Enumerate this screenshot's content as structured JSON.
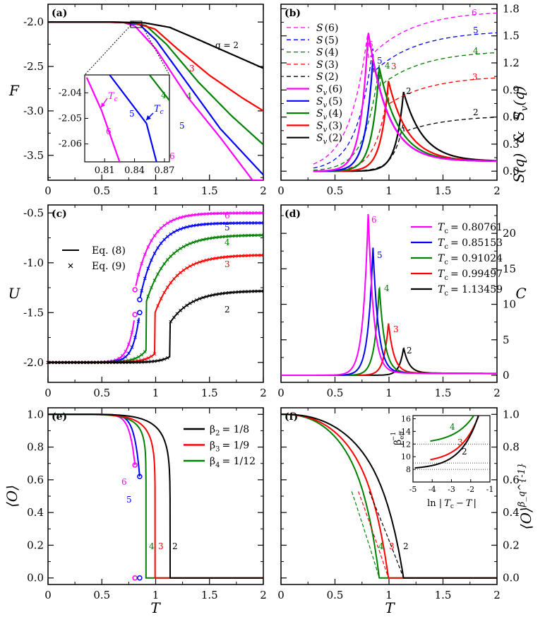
{
  "colors": {
    "q6": "#ff00ff",
    "q5": "#0000ff",
    "q4": "#008000",
    "q3": "#ff0000",
    "q2": "#000000"
  },
  "chart_data": [
    {
      "id": "a",
      "type": "line",
      "panel_label": "(a)",
      "xlabel": "",
      "ylabel": "F",
      "xlim": [
        0,
        2
      ],
      "ylim": [
        -3.78,
        -1.8
      ],
      "xticks": [
        "0",
        "0.5",
        "1",
        "1.5",
        "2"
      ],
      "yticks": [
        "-2.0",
        "-2.5",
        "-3.0",
        "-3.5"
      ],
      "series": [
        {
          "name": "q=6",
          "label": "6",
          "x": [
            0,
            0.5,
            0.7,
            0.807,
            1.0,
            1.3,
            1.6,
            1.9
          ],
          "y": [
            -2.0,
            -2.0,
            -2.005,
            -2.045,
            -2.3,
            -2.85,
            -3.3,
            -3.78
          ]
        },
        {
          "name": "q=5",
          "label": "5",
          "x": [
            0,
            0.5,
            0.7,
            0.852,
            1.0,
            1.3,
            1.6,
            2.0
          ],
          "y": [
            -2.0,
            -2.0,
            -2.004,
            -2.03,
            -2.2,
            -2.7,
            -3.2,
            -3.72
          ]
        },
        {
          "name": "q=4",
          "label": "4",
          "x": [
            0,
            0.5,
            0.75,
            0.91,
            1.1,
            1.4,
            1.7,
            2.0
          ],
          "y": [
            -2.0,
            -2.0,
            -2.005,
            -2.04,
            -2.25,
            -2.68,
            -3.05,
            -3.38
          ]
        },
        {
          "name": "q=3",
          "label": "3",
          "x": [
            0,
            0.5,
            0.8,
            0.995,
            1.2,
            1.5,
            1.8,
            2.0
          ],
          "y": [
            -2.0,
            -2.0,
            -2.008,
            -2.08,
            -2.3,
            -2.6,
            -2.85,
            -3.0
          ]
        },
        {
          "name": "q=2",
          "label": "q = 2",
          "x": [
            0,
            0.6,
            0.9,
            1.13,
            1.4,
            1.7,
            2.0
          ],
          "y": [
            -2.0,
            -2.0,
            -2.01,
            -2.06,
            -2.2,
            -2.36,
            -2.52
          ]
        }
      ],
      "inset": {
        "xlim": [
          0.79,
          0.875
        ],
        "ylim": [
          -2.067,
          -2.033
        ],
        "xticks": [
          "0.81",
          "0.84",
          "0.87"
        ],
        "yticks": [
          "-2.04",
          "-2.05",
          "-2.06"
        ],
        "annotations": [
          "T",
          "c",
          "T",
          "c"
        ],
        "labels": [
          "6",
          "5",
          "4"
        ]
      }
    },
    {
      "id": "b",
      "type": "line",
      "panel_label": "(b)",
      "xlabel": "",
      "ylabel_right_1": "S(q)",
      "ylabel_right_amp": "&",
      "ylabel_right_2": "S",
      "ylabel_right_2_sub": "v",
      "ylabel_right_2_tail": "(q)",
      "xlim": [
        0,
        2
      ],
      "ylim": [
        -0.1,
        1.85
      ],
      "xticks": [
        "0",
        "0.5",
        "1",
        "1.5",
        "2"
      ],
      "yticks": [
        "0.0",
        "0.3",
        "0.6",
        "0.9",
        "1.2",
        "1.5",
        "1.8"
      ],
      "legend": [
        "S(6)",
        "S(5)",
        "S(4)",
        "S(3)",
        "S(2)",
        "S_v(6)",
        "S_v(5)",
        "S_v(4)",
        "S_v(3)",
        "S_v(2)"
      ],
      "legend_parts": [
        {
          "s": "S",
          "sub": "",
          "q": "(6)"
        },
        {
          "s": "S",
          "sub": "",
          "q": "(5)"
        },
        {
          "s": "S",
          "sub": "",
          "q": "(4)"
        },
        {
          "s": "S",
          "sub": "",
          "q": "(3)"
        },
        {
          "s": "S",
          "sub": "",
          "q": "(2)"
        },
        {
          "s": "S",
          "sub": "v",
          "q": "(6)"
        },
        {
          "s": "S",
          "sub": "v",
          "q": "(5)"
        },
        {
          "s": "S",
          "sub": "v",
          "q": "(4)"
        },
        {
          "s": "S",
          "sub": "v",
          "q": "(3)"
        },
        {
          "s": "S",
          "sub": "v",
          "q": "(2)"
        }
      ],
      "Tc": [
        0.80761,
        0.85153,
        0.91024,
        0.99497,
        1.13459
      ],
      "S_final": [
        1.78,
        1.56,
        1.34,
        1.06,
        0.62
      ],
      "Sv_peak": [
        1.55,
        1.25,
        1.15,
        1.0,
        0.88
      ],
      "labels": [
        "6",
        "5",
        "4",
        "3",
        "2"
      ]
    },
    {
      "id": "c",
      "type": "line",
      "panel_label": "(c)",
      "xlabel": "",
      "ylabel": "U",
      "xlim": [
        0,
        2
      ],
      "ylim": [
        -2.2,
        -0.42
      ],
      "xticks": [
        "0",
        "0.5",
        "1",
        "1.5",
        "2"
      ],
      "yticks": [
        "-0.5",
        "-1.0",
        "-1.5",
        "-2.0"
      ],
      "legend": [
        "Eq. (8)",
        "Eq. (9)"
      ],
      "Tc": [
        0.80761,
        0.85153,
        0.91024,
        0.99497,
        1.13459
      ],
      "U_final": [
        -0.5,
        -0.6,
        -0.72,
        -0.92,
        -1.28
      ],
      "labels": [
        "6",
        "5",
        "4",
        "3",
        "2"
      ]
    },
    {
      "id": "d",
      "type": "line",
      "panel_label": "(d)",
      "xlabel": "",
      "ylabel": "C",
      "xlim": [
        0,
        2
      ],
      "ylim": [
        -1,
        24
      ],
      "xticks": [
        "0",
        "0.5",
        "1",
        "1.5",
        "2"
      ],
      "yticks": [
        "0",
        "5",
        "10",
        "15",
        "20"
      ],
      "legend": [
        "T_c = 0.80761",
        "T_c = 0.85153",
        "T_c = 0.91024",
        "T_c = 0.99497",
        "T_c = 1.13459"
      ],
      "legend_values": [
        "0.80761",
        "0.85153",
        "0.91024",
        "0.99497",
        "1.13459"
      ],
      "Tc": [
        0.80761,
        0.85153,
        0.91024,
        0.99497,
        1.13459
      ],
      "peak": [
        23,
        18,
        12.5,
        7.3,
        3.8
      ],
      "labels": [
        "6",
        "5",
        "4",
        "3",
        "2"
      ]
    },
    {
      "id": "e",
      "type": "line",
      "panel_label": "(e)",
      "xlabel": "T",
      "ylabel": "⟨O⟩",
      "xlim": [
        0,
        2
      ],
      "ylim": [
        -0.04,
        1.04
      ],
      "xticks": [
        "0",
        "0.5",
        "1",
        "1.5",
        "2"
      ],
      "yticks": [
        "0.0",
        "0.2",
        "0.4",
        "0.6",
        "0.8",
        "1.0"
      ],
      "legend": [
        "β2 = 1/8",
        "β3 = 1/9",
        "β4 = 1/12"
      ],
      "legend_parts": [
        {
          "sub": "2",
          "val": "1/8"
        },
        {
          "sub": "3",
          "val": "1/9"
        },
        {
          "sub": "4",
          "val": "1/12"
        }
      ],
      "Tc": [
        0.80761,
        0.85153,
        0.91024,
        0.99497,
        1.13459
      ],
      "jump": [
        0.69,
        0.62
      ],
      "labels": [
        "6",
        "5",
        "4",
        "3",
        "2"
      ]
    },
    {
      "id": "f",
      "type": "line",
      "panel_label": "(f)",
      "xlabel": "T",
      "ylabel_right": "⟨O⟩",
      "ylabel_right_sup": "β_q^{-1}",
      "xlim": [
        0,
        2
      ],
      "ylim": [
        -0.04,
        1.04
      ],
      "xticks": [
        "0",
        "0.5",
        "1",
        "1.5",
        "2"
      ],
      "yticks": [
        "0.0",
        "0.2",
        "0.4",
        "0.6",
        "0.8",
        "1.0"
      ],
      "Tc": [
        0.91024,
        0.99497,
        1.13459
      ],
      "labels": [
        "4",
        "3",
        "2"
      ],
      "inset": {
        "xlim": [
          -5,
          -1
        ],
        "ylim": [
          6,
          16.5
        ],
        "xticks": [
          "-5",
          "-4",
          "-3",
          "-2",
          "-1"
        ],
        "yticks": [
          "8",
          "10",
          "12",
          "14",
          "16"
        ],
        "xlabel_parts": [
          "ln |",
          "T",
          "c",
          "−",
          "T",
          "|"
        ],
        "ylabel": "β",
        "ylabel_sub": "eff",
        "ylabel_sup": "−1",
        "guides": [
          8,
          9,
          12
        ],
        "labels": [
          "4",
          "3",
          "2"
        ]
      }
    }
  ]
}
